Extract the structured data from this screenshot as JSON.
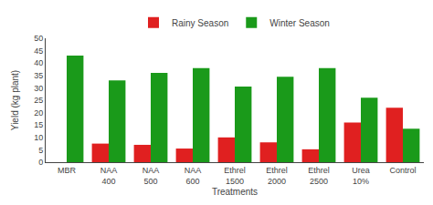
{
  "chart_data": {
    "type": "bar",
    "categories": [
      "MBR",
      "NAA\n400",
      "NAA\n500",
      "NAA\n600",
      "Ethrel\n1500",
      "Ethrel\n2000",
      "Ethrel\n2500",
      "Urea\n10%",
      "Control"
    ],
    "series": [
      {
        "name": "Rainy Season",
        "color": "#e02020",
        "values": [
          0,
          7.5,
          7.0,
          5.5,
          10.0,
          8.0,
          5.2,
          16.0,
          22.0
        ]
      },
      {
        "name": "Winter Season",
        "color": "#1a9a1a",
        "values": [
          43.0,
          33.0,
          36.0,
          38.0,
          30.5,
          34.5,
          38.0,
          26.0,
          13.5
        ]
      }
    ],
    "xlabel": "Treatments",
    "ylabel": "Yield (kg plant)",
    "ylim": [
      0,
      50
    ],
    "yticks": [
      0,
      5,
      10,
      15,
      20,
      25,
      30,
      35,
      40,
      45,
      50
    ],
    "grid": false,
    "legend": "upper center"
  }
}
